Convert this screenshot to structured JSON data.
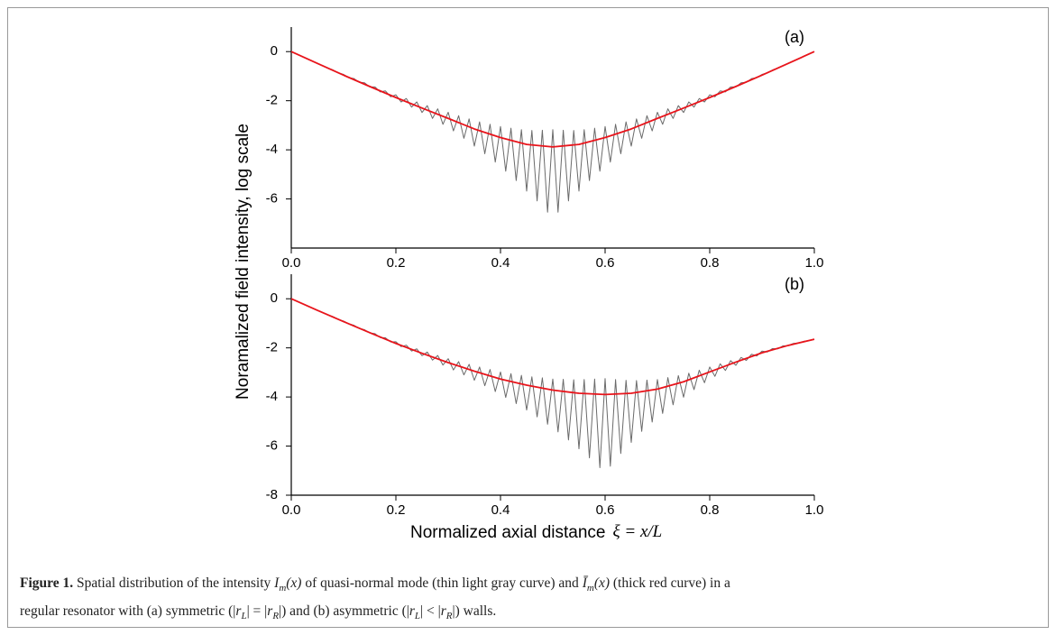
{
  "figure": {
    "ylabel": "Noramalized field intensity, log scale",
    "xlabel": "Normalized axial distance",
    "xlabel_symbol": "ξ = x/L"
  },
  "caption": {
    "parts": [
      "Figure 1.",
      " Spatial distribution of the intensity ",
      "I",
      "m",
      "(x)",
      " of quasi-normal mode (thin light gray curve) and ",
      "Ī",
      "m",
      "(x)",
      " (thick red curve) in a",
      "regular resonator with (a) symmetric (|",
      "r",
      "L",
      "| = |",
      "r",
      "R",
      "|) and (b) asymmetric (|",
      "r",
      "L",
      "| < |",
      "r",
      "R",
      "|) walls."
    ]
  },
  "chart_data": [
    {
      "type": "line",
      "label": "(a)",
      "xlim": [
        0,
        1
      ],
      "ylim": [
        -8,
        1
      ],
      "xticks": [
        {
          "value": 0,
          "label": "0.0"
        },
        0.2,
        0.4,
        0.6,
        0.8,
        {
          "value": 1,
          "label": "1.0"
        }
      ],
      "yticks": [
        0,
        -2,
        -4,
        -6
      ],
      "series": [
        {
          "color": "#6a6a6a",
          "x": [
            0,
            0.01,
            0.02,
            0.03,
            0.04,
            0.05,
            0.06,
            0.07,
            0.08,
            0.09,
            0.1,
            0.11,
            0.12,
            0.13,
            0.14,
            0.15,
            0.16,
            0.17,
            0.18,
            0.19,
            0.2,
            0.21,
            0.22,
            0.23,
            0.24,
            0.25,
            0.26,
            0.27,
            0.28,
            0.29,
            0.3,
            0.31,
            0.32,
            0.33,
            0.34,
            0.35,
            0.36,
            0.37,
            0.38,
            0.39,
            0.4,
            0.41,
            0.42,
            0.43,
            0.44,
            0.45,
            0.46,
            0.47,
            0.48,
            0.49,
            0.5,
            0.51,
            0.52,
            0.53,
            0.54,
            0.55,
            0.56,
            0.57,
            0.58,
            0.59,
            0.6,
            0.61,
            0.62,
            0.63,
            0.64,
            0.65,
            0.66,
            0.67,
            0.68,
            0.69,
            0.7,
            0.71,
            0.72,
            0.73,
            0.74,
            0.75,
            0.76,
            0.77,
            0.78,
            0.79,
            0.8,
            0.81,
            0.82,
            0.83,
            0.84,
            0.85,
            0.86,
            0.87,
            0.88,
            0.89,
            0.9,
            0.91,
            0.92,
            0.93,
            0.94,
            0.95,
            0.96,
            0.97,
            0.98,
            0.99,
            1
          ],
          "values": [
            0,
            -0.1,
            -0.19,
            -0.29,
            -0.38,
            -0.48,
            -0.57,
            -0.67,
            -0.75,
            -0.87,
            -0.93,
            -1.06,
            -1.1,
            -1.25,
            -1.27,
            -1.44,
            -1.44,
            -1.64,
            -1.6,
            -1.84,
            -1.76,
            -2.05,
            -1.91,
            -2.26,
            -2.05,
            -2.48,
            -2.2,
            -2.72,
            -2.33,
            -2.96,
            -2.47,
            -3.23,
            -2.61,
            -3.53,
            -2.74,
            -3.85,
            -2.86,
            -4.16,
            -2.96,
            -4.5,
            -3.05,
            -4.87,
            -3.12,
            -5.25,
            -3.18,
            -5.68,
            -3.21,
            -6.08,
            -3.2,
            -6.54,
            -3.18,
            -6.54,
            -3.2,
            -6.08,
            -3.21,
            -5.68,
            -3.18,
            -5.25,
            -3.12,
            -4.87,
            -3.05,
            -4.5,
            -2.96,
            -4.16,
            -2.86,
            -3.85,
            -2.74,
            -3.53,
            -2.61,
            -3.23,
            -2.47,
            -2.96,
            -2.33,
            -2.72,
            -2.2,
            -2.48,
            -2.05,
            -2.26,
            -1.91,
            -2.05,
            -1.76,
            -1.84,
            -1.6,
            -1.64,
            -1.44,
            -1.44,
            -1.27,
            -1.25,
            -1.1,
            -1.06,
            -0.93,
            -0.87,
            -0.75,
            -0.67,
            -0.57,
            -0.48,
            -0.38,
            -0.29,
            -0.19,
            -0.1,
            0
          ]
        },
        {
          "color": "#e8141b",
          "x": [
            0,
            0.05,
            0.1,
            0.15,
            0.2,
            0.25,
            0.3,
            0.35,
            0.4,
            0.45,
            0.5,
            0.55,
            0.6,
            0.65,
            0.7,
            0.75,
            0.8,
            0.85,
            0.9,
            0.95,
            1
          ],
          "values": [
            0,
            -0.48,
            -0.96,
            -1.42,
            -1.87,
            -2.3,
            -2.72,
            -3.15,
            -3.5,
            -3.78,
            -3.88,
            -3.78,
            -3.5,
            -3.15,
            -2.72,
            -2.3,
            -1.87,
            -1.42,
            -0.96,
            -0.48,
            0
          ]
        }
      ]
    },
    {
      "type": "line",
      "label": "(b)",
      "xlim": [
        0,
        1
      ],
      "ylim": [
        -8,
        1
      ],
      "xticks": [
        {
          "value": 0,
          "label": "0.0"
        },
        0.2,
        0.4,
        0.6,
        0.8,
        {
          "value": 1,
          "label": "1.0"
        }
      ],
      "yticks": [
        0,
        -2,
        -4,
        -6,
        -8
      ],
      "series": [
        {
          "color": "#6a6a6a",
          "x": [
            0,
            0.01,
            0.02,
            0.03,
            0.04,
            0.05,
            0.06,
            0.07,
            0.08,
            0.09,
            0.1,
            0.11,
            0.12,
            0.13,
            0.14,
            0.15,
            0.16,
            0.17,
            0.18,
            0.19,
            0.2,
            0.21,
            0.22,
            0.23,
            0.24,
            0.25,
            0.26,
            0.27,
            0.28,
            0.29,
            0.3,
            0.31,
            0.32,
            0.33,
            0.34,
            0.35,
            0.36,
            0.37,
            0.38,
            0.39,
            0.4,
            0.41,
            0.42,
            0.43,
            0.44,
            0.45,
            0.46,
            0.47,
            0.48,
            0.49,
            0.5,
            0.51,
            0.52,
            0.53,
            0.54,
            0.55,
            0.56,
            0.57,
            0.58,
            0.59,
            0.6,
            0.61,
            0.62,
            0.63,
            0.64,
            0.65,
            0.66,
            0.67,
            0.68,
            0.69,
            0.7,
            0.71,
            0.72,
            0.73,
            0.74,
            0.75,
            0.76,
            0.77,
            0.78,
            0.79,
            0.8,
            0.81,
            0.82,
            0.83,
            0.84,
            0.85,
            0.86,
            0.87,
            0.88,
            0.89,
            0.9,
            0.91,
            0.92,
            0.93,
            0.94,
            0.95,
            0.96,
            0.97,
            0.98,
            0.99,
            1
          ],
          "values": [
            0,
            -0.09,
            -0.19,
            -0.28,
            -0.38,
            -0.47,
            -0.56,
            -0.65,
            -0.73,
            -0.84,
            -0.91,
            -1.02,
            -1.08,
            -1.21,
            -1.26,
            -1.39,
            -1.42,
            -1.58,
            -1.59,
            -1.76,
            -1.75,
            -1.95,
            -1.89,
            -2.13,
            -2.04,
            -2.32,
            -2.17,
            -2.5,
            -2.31,
            -2.7,
            -2.44,
            -2.9,
            -2.56,
            -3.1,
            -2.67,
            -3.32,
            -2.78,
            -3.54,
            -2.88,
            -3.78,
            -2.98,
            -4.02,
            -3.05,
            -4.27,
            -3.12,
            -4.53,
            -3.18,
            -4.81,
            -3.22,
            -5.11,
            -3.27,
            -5.42,
            -3.28,
            -5.75,
            -3.3,
            -6.11,
            -3.29,
            -6.48,
            -3.27,
            -6.88,
            -3.25,
            -6.82,
            -3.29,
            -6.3,
            -3.32,
            -5.85,
            -3.33,
            -5.4,
            -3.31,
            -5.02,
            -3.29,
            -4.67,
            -3.21,
            -4.32,
            -3.13,
            -4.01,
            -3.03,
            -3.7,
            -2.91,
            -3.42,
            -2.78,
            -3.16,
            -2.65,
            -2.92,
            -2.52,
            -2.71,
            -2.39,
            -2.51,
            -2.26,
            -2.33,
            -2.13,
            -2.17,
            -2.03,
            -2.04,
            -1.92,
            -1.91,
            -1.82,
            -1.8,
            -1.73,
            -1.7,
            -1.64
          ]
        },
        {
          "color": "#e8141b",
          "x": [
            0,
            0.05,
            0.1,
            0.15,
            0.2,
            0.25,
            0.3,
            0.35,
            0.4,
            0.45,
            0.5,
            0.55,
            0.6,
            0.65,
            0.7,
            0.75,
            0.8,
            0.85,
            0.9,
            0.95,
            1
          ],
          "values": [
            0,
            -0.47,
            -0.93,
            -1.38,
            -1.82,
            -2.22,
            -2.6,
            -2.95,
            -3.27,
            -3.52,
            -3.72,
            -3.85,
            -3.9,
            -3.85,
            -3.68,
            -3.38,
            -2.98,
            -2.58,
            -2.2,
            -1.9,
            -1.65
          ]
        }
      ]
    }
  ]
}
